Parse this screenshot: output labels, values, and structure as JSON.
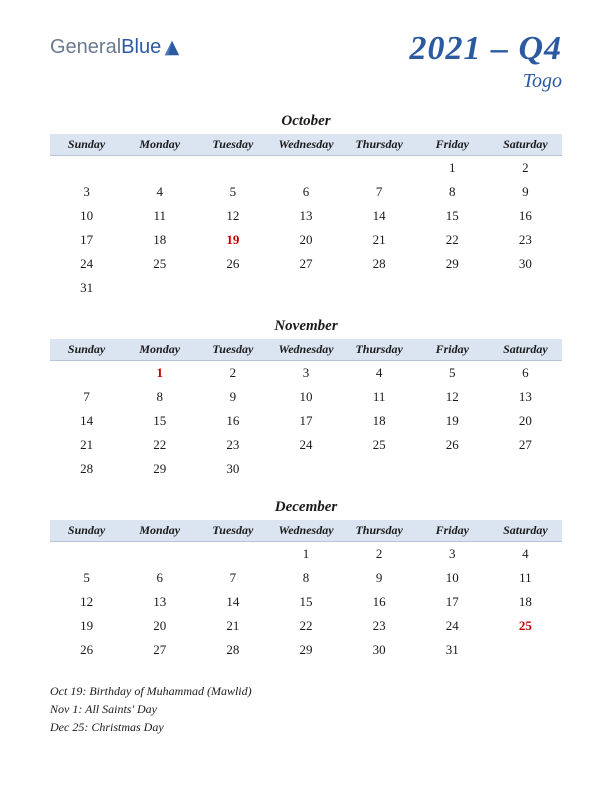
{
  "logo": {
    "part1": "General",
    "part2": "Blue"
  },
  "title": {
    "main": "2021 – Q4",
    "sub": "Togo"
  },
  "colors": {
    "header_bg": "#dbe5f1",
    "accent": "#2b5aa0",
    "holiday": "#c00000",
    "text": "#1a1a1a"
  },
  "day_headers": [
    "Sunday",
    "Monday",
    "Tuesday",
    "Wednesday",
    "Thursday",
    "Friday",
    "Saturday"
  ],
  "months": [
    {
      "name": "October",
      "weeks": [
        [
          "",
          "",
          "",
          "",
          "",
          "1",
          "2"
        ],
        [
          "3",
          "4",
          "5",
          "6",
          "7",
          "8",
          "9"
        ],
        [
          "10",
          "11",
          "12",
          "13",
          "14",
          "15",
          "16"
        ],
        [
          "17",
          "18",
          "19",
          "20",
          "21",
          "22",
          "23"
        ],
        [
          "24",
          "25",
          "26",
          "27",
          "28",
          "29",
          "30"
        ],
        [
          "31",
          "",
          "",
          "",
          "",
          "",
          ""
        ]
      ],
      "holidays": [
        "19"
      ]
    },
    {
      "name": "November",
      "weeks": [
        [
          "",
          "1",
          "2",
          "3",
          "4",
          "5",
          "6"
        ],
        [
          "7",
          "8",
          "9",
          "10",
          "11",
          "12",
          "13"
        ],
        [
          "14",
          "15",
          "16",
          "17",
          "18",
          "19",
          "20"
        ],
        [
          "21",
          "22",
          "23",
          "24",
          "25",
          "26",
          "27"
        ],
        [
          "28",
          "29",
          "30",
          "",
          "",
          "",
          ""
        ]
      ],
      "holidays": [
        "1"
      ]
    },
    {
      "name": "December",
      "weeks": [
        [
          "",
          "",
          "",
          "1",
          "2",
          "3",
          "4"
        ],
        [
          "5",
          "6",
          "7",
          "8",
          "9",
          "10",
          "11"
        ],
        [
          "12",
          "13",
          "14",
          "15",
          "16",
          "17",
          "18"
        ],
        [
          "19",
          "20",
          "21",
          "22",
          "23",
          "24",
          "25"
        ],
        [
          "26",
          "27",
          "28",
          "29",
          "30",
          "31",
          ""
        ]
      ],
      "holidays": [
        "25"
      ]
    }
  ],
  "holiday_notes": [
    "Oct 19: Birthday of Muhammad (Mawlid)",
    "Nov 1: All Saints' Day",
    "Dec 25: Christmas Day"
  ]
}
